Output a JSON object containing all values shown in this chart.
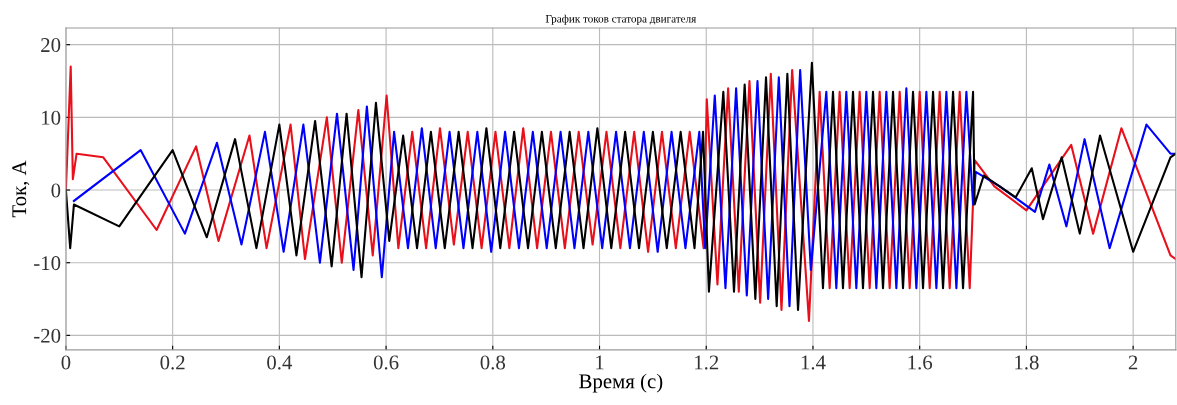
{
  "chart_data": {
    "type": "line",
    "title": "График токов статора двигателя",
    "xlabel": "Время (с)",
    "ylabel": "Ток, А",
    "xlim": [
      0,
      2.08
    ],
    "xticks": [
      0,
      0.2,
      0.4,
      0.6,
      0.8,
      1,
      1.2,
      1.4,
      1.6,
      1.8,
      2
    ],
    "ylim": [
      -22,
      22.3
    ],
    "yticks": [
      -20,
      -10,
      0,
      10,
      20
    ],
    "grid": true,
    "line_style": "solid",
    "series": [
      {
        "color": "#e8101a",
        "x": [
          0,
          0.009,
          0.013,
          0.02,
          0.07,
          0.17,
          0.244,
          0.286,
          0.344,
          0.376,
          0.421,
          0.448,
          0.489,
          0.517,
          0.548,
          0.575,
          0.601,
          0.623,
          0.649,
          0.675,
          0.701,
          0.727,
          0.753,
          0.779,
          0.805,
          0.831,
          0.857,
          0.883,
          0.909,
          0.935,
          0.961,
          0.987,
          1.013,
          1.039,
          1.065,
          1.091,
          1.117,
          1.143,
          1.169,
          1.195,
          1.201,
          1.221,
          1.241,
          1.261,
          1.281,
          1.301,
          1.321,
          1.341,
          1.361,
          1.3925,
          1.4125,
          1.43125,
          1.45,
          1.46875,
          1.4875,
          1.50625,
          1.525,
          1.54375,
          1.5625,
          1.58125,
          1.6,
          1.61875,
          1.6375,
          1.65625,
          1.675,
          1.69375,
          1.703,
          1.74,
          1.8,
          1.884,
          1.925,
          1.978,
          2.07,
          2.08
        ],
        "values": [
          0,
          17,
          1.5,
          5,
          4.5,
          -5.5,
          6,
          -7,
          7.5,
          -8,
          9,
          -9.5,
          10,
          -10,
          11,
          -9,
          13,
          -8,
          8,
          -8,
          8.5,
          -7.5,
          8,
          -8,
          8,
          -8,
          8.5,
          -8,
          8,
          -8,
          8,
          -7.5,
          8,
          -8,
          8,
          -8.5,
          8,
          -8,
          8,
          -8,
          12.5,
          -13,
          14,
          -14,
          15,
          -15.5,
          16,
          -16.5,
          16.5,
          -18,
          13.5,
          -13.5,
          13.5,
          -13.5,
          13.5,
          -13.5,
          13.5,
          -13.5,
          13.5,
          -13.5,
          13.5,
          -13.5,
          13.5,
          -13.5,
          13.5,
          -13.5,
          4.1,
          0.5,
          -2.8,
          6.2,
          -6,
          8.5,
          -9,
          -9.5
        ]
      },
      {
        "color": "#0000ff",
        "x": [
          0.015,
          0.14,
          0.223,
          0.283,
          0.329,
          0.373,
          0.408,
          0.445,
          0.476,
          0.508,
          0.539,
          0.564,
          0.592,
          0.615,
          0.641,
          0.667,
          0.693,
          0.719,
          0.745,
          0.771,
          0.797,
          0.823,
          0.849,
          0.875,
          0.901,
          0.927,
          0.953,
          0.979,
          1.005,
          1.031,
          1.057,
          1.083,
          1.109,
          1.135,
          1.161,
          1.187,
          1.198,
          1.216,
          1.236,
          1.256,
          1.276,
          1.296,
          1.316,
          1.336,
          1.356,
          1.376,
          1.396,
          1.425,
          1.44375,
          1.4625,
          1.48125,
          1.5,
          1.51875,
          1.5375,
          1.55625,
          1.575,
          1.59375,
          1.6125,
          1.63125,
          1.65,
          1.66875,
          1.6875,
          1.7,
          1.705,
          1.75,
          1.816,
          1.843,
          1.875,
          1.909,
          1.956,
          2.025,
          2.07,
          2.08
        ],
        "values": [
          -1.5,
          5.5,
          -6,
          6.5,
          -7.5,
          8,
          -8.5,
          9,
          -10,
          10.5,
          -11,
          11.5,
          -12,
          8,
          -8,
          8.5,
          -8,
          8,
          -8,
          8,
          -8.5,
          8,
          -8,
          8,
          -8,
          8,
          -8,
          8,
          -8,
          8,
          -8,
          8,
          -8.5,
          8,
          -8,
          8,
          -8,
          13,
          -13.5,
          14,
          -14.5,
          15,
          -15,
          15.5,
          -16,
          16.5,
          -11,
          13.5,
          -13.5,
          13.5,
          -13.5,
          13.5,
          -13.5,
          13.5,
          -13.5,
          14,
          -13.5,
          13.5,
          -13.5,
          13.5,
          -13.5,
          13.5,
          -2,
          2.5,
          0.5,
          -3,
          3.5,
          -5,
          7,
          -8,
          9,
          5,
          5
        ]
      },
      {
        "color": "#000000",
        "x": [
          0,
          0.008,
          0.015,
          0.1,
          0.2,
          0.264,
          0.317,
          0.357,
          0.4,
          0.432,
          0.467,
          0.498,
          0.526,
          0.554,
          0.581,
          0.606,
          0.632,
          0.658,
          0.684,
          0.71,
          0.736,
          0.762,
          0.788,
          0.814,
          0.84,
          0.866,
          0.892,
          0.918,
          0.944,
          0.97,
          0.996,
          1.022,
          1.048,
          1.074,
          1.1,
          1.126,
          1.152,
          1.178,
          1.194,
          1.205,
          1.232,
          1.252,
          1.272,
          1.292,
          1.312,
          1.332,
          1.352,
          1.372,
          1.398,
          1.41875,
          1.4375,
          1.45625,
          1.475,
          1.49375,
          1.5125,
          1.53125,
          1.55,
          1.56875,
          1.5875,
          1.60625,
          1.625,
          1.64375,
          1.6625,
          1.68125,
          1.7,
          1.703,
          1.72,
          1.76,
          1.78,
          1.81,
          1.831,
          1.866,
          1.9,
          1.938,
          2.0,
          2.07,
          2.08
        ],
        "values": [
          0,
          -8,
          -2,
          -5,
          5.5,
          -6.5,
          7,
          -8,
          9,
          -9,
          9.5,
          -10.5,
          10.5,
          -12,
          12,
          -7,
          7.5,
          -8,
          8,
          -8,
          8,
          -8,
          8.5,
          -8,
          8,
          -8,
          8,
          -8,
          8,
          -8,
          8.5,
          -8,
          8,
          -8,
          8,
          -8,
          8,
          -8,
          8,
          -14,
          13.5,
          -14,
          14.5,
          -15,
          15.5,
          -16,
          16,
          -16.5,
          17.5,
          -13.5,
          13.5,
          -13.5,
          13.5,
          -13.5,
          13.5,
          -13.5,
          13.5,
          -13.5,
          13.5,
          -13.5,
          13.5,
          -13.5,
          13.5,
          -13.5,
          13.5,
          -2,
          2,
          0,
          -1,
          3,
          -4,
          4.5,
          -6,
          7.5,
          -8.5,
          4.5,
          5
        ]
      }
    ]
  }
}
